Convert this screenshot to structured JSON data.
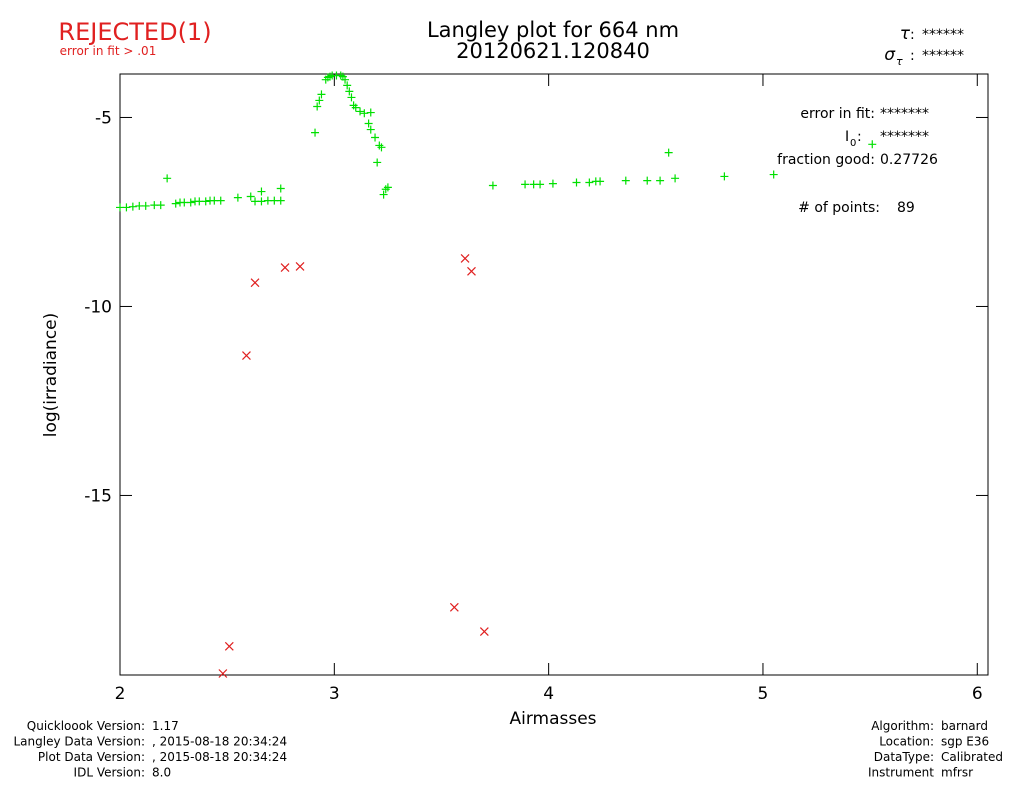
{
  "chart_data": {
    "type": "scatter",
    "title": "Langley plot for 664 nm",
    "subtitle": "20120621.120840",
    "status": "REJECTED(1)",
    "status_note": "error in fit > .01",
    "tau": {
      "symbol": "τ",
      "value": "******"
    },
    "sigma_tau": {
      "symbol": "σ",
      "sub": "τ",
      "value": "******"
    },
    "x_label": "Airmasses",
    "y_label": "log(irradiance)",
    "xlim": [
      2,
      6.05
    ],
    "ylim": [
      -19.75,
      -3.85
    ],
    "xticks": [
      2,
      3,
      4,
      5,
      6
    ],
    "yticks": [
      -5,
      -10,
      -15
    ],
    "annotations": {
      "error_in_fit": {
        "label": "error in fit:",
        "value": "*******"
      },
      "i0": {
        "label": "I",
        "sub": "0",
        "colon": ":",
        "value": "*******"
      },
      "fraction_good": {
        "label": "fraction good:",
        "value": 0.27726
      },
      "points": {
        "label": "# of points:",
        "value": 89
      }
    },
    "series": [
      {
        "name": "good",
        "color": "#00e000",
        "marker": "plus",
        "x": [
          2.0,
          2.03,
          2.06,
          2.09,
          2.12,
          2.16,
          2.19,
          2.22,
          2.26,
          2.28,
          2.3,
          2.33,
          2.35,
          2.37,
          2.4,
          2.42,
          2.44,
          2.47,
          2.55,
          2.61,
          2.63,
          2.66,
          2.66,
          2.69,
          2.72,
          2.75,
          2.75,
          2.91,
          2.92,
          2.93,
          2.94,
          2.96,
          2.97,
          2.98,
          2.99,
          3.01,
          3.03,
          3.04,
          3.05,
          3.06,
          3.07,
          3.08,
          3.09,
          3.1,
          3.12,
          3.14,
          3.16,
          3.17,
          3.17,
          3.19,
          3.2,
          3.21,
          3.22,
          3.23,
          3.24,
          3.25,
          3.74,
          3.89,
          3.93,
          3.96,
          4.02,
          4.13,
          4.19,
          4.22,
          4.24,
          4.36,
          4.46,
          4.52,
          4.56,
          4.59,
          4.82,
          5.05,
          5.51
        ],
        "values": [
          -7.38,
          -7.38,
          -7.36,
          -7.34,
          -7.34,
          -7.32,
          -7.32,
          -6.61,
          -7.28,
          -7.25,
          -7.25,
          -7.25,
          -7.22,
          -7.22,
          -7.22,
          -7.2,
          -7.2,
          -7.2,
          -7.12,
          -7.09,
          -7.22,
          -6.96,
          -7.22,
          -7.2,
          -7.2,
          -6.88,
          -7.2,
          -5.4,
          -4.71,
          -4.55,
          -4.39,
          -4.0,
          -3.94,
          -3.92,
          -3.89,
          -3.89,
          -3.89,
          -3.92,
          -4.0,
          -4.15,
          -4.31,
          -4.47,
          -4.68,
          -4.74,
          -4.84,
          -4.89,
          -5.16,
          -4.87,
          -5.32,
          -5.53,
          -6.19,
          -5.74,
          -5.79,
          -7.04,
          -6.9,
          -6.85,
          -6.8,
          -6.77,
          -6.77,
          -6.77,
          -6.75,
          -6.72,
          -6.72,
          -6.69,
          -6.69,
          -6.67,
          -6.67,
          -6.67,
          -5.93,
          -6.61,
          -6.56,
          -6.51,
          -5.71
        ]
      },
      {
        "name": "rejected",
        "color": "#e02020",
        "marker": "cross",
        "x": [
          2.48,
          2.51,
          2.59,
          2.63,
          2.77,
          2.84,
          3.56,
          3.61,
          3.64,
          3.7
        ],
        "values": [
          -19.71,
          -18.99,
          -11.3,
          -9.37,
          -8.97,
          -8.94,
          -17.96,
          -8.73,
          -9.07,
          -18.6
        ]
      }
    ],
    "footer_left": [
      {
        "label": "Quickloook Version:",
        "value": "1.17"
      },
      {
        "label": "Langley Data Version:",
        "value": ", 2015-08-18 20:34:24"
      },
      {
        "label": "Plot Data Version:",
        "value": ", 2015-08-18 20:34:24"
      },
      {
        "label": "IDL Version:",
        "value": "8.0"
      }
    ],
    "footer_right": [
      {
        "label": "Algorithm:",
        "value": "barnard"
      },
      {
        "label": "Location:",
        "value": "sgp E36"
      },
      {
        "label": "DataType:",
        "value": "Calibrated"
      },
      {
        "label": "Instrument",
        "value": "mfrsr"
      }
    ]
  }
}
